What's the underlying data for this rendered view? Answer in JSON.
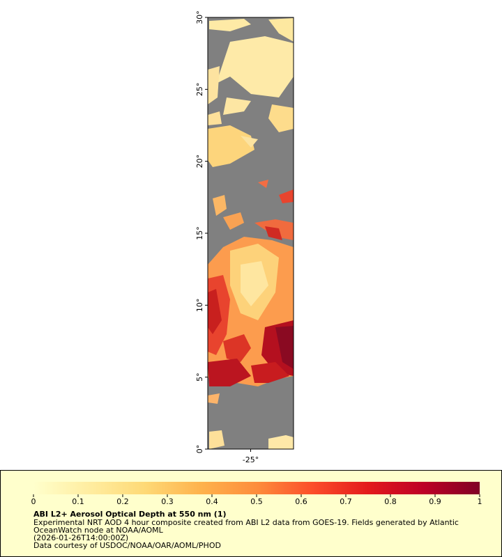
{
  "map": {
    "lat_lim": [
      0,
      30
    ],
    "lat_ticks": [
      {
        "value": 0,
        "label": "0°"
      },
      {
        "value": 5,
        "label": "5°"
      },
      {
        "value": 10,
        "label": "10°"
      },
      {
        "value": 15,
        "label": "15°"
      },
      {
        "value": 20,
        "label": "20°"
      },
      {
        "value": 25,
        "label": "25°"
      },
      {
        "value": 30,
        "label": "30°"
      }
    ],
    "lon_lim": [
      -28,
      -22
    ],
    "lon_ticks": [
      {
        "value": -25,
        "label": "-25°"
      }
    ]
  },
  "legend": {
    "title": "ABI L2+ Aerosol Optical Depth at 550 nm (1)",
    "lines": [
      "Experimental NRT AOD 4 hour composite created from ABI L2 data from GOES-19. Fields generated by Atlantic",
      "OceanWatch node at NOAA/AOML",
      "(2026-01-26T14:00:00Z)",
      "Data courtesy of USDOC/NOAA/OAR/AOML/PHOD"
    ],
    "colorbar": {
      "lim": [
        0,
        1
      ],
      "ticks": [
        0,
        0.1,
        0.2,
        0.3,
        0.4,
        0.5,
        0.6,
        0.7,
        0.8,
        0.9,
        1
      ],
      "colors": [
        "#ffffcc",
        "#ffeda0",
        "#fed976",
        "#feb24c",
        "#fd8d3c",
        "#fc4e2a",
        "#e31a1c",
        "#bd0026",
        "#800026"
      ]
    }
  }
}
